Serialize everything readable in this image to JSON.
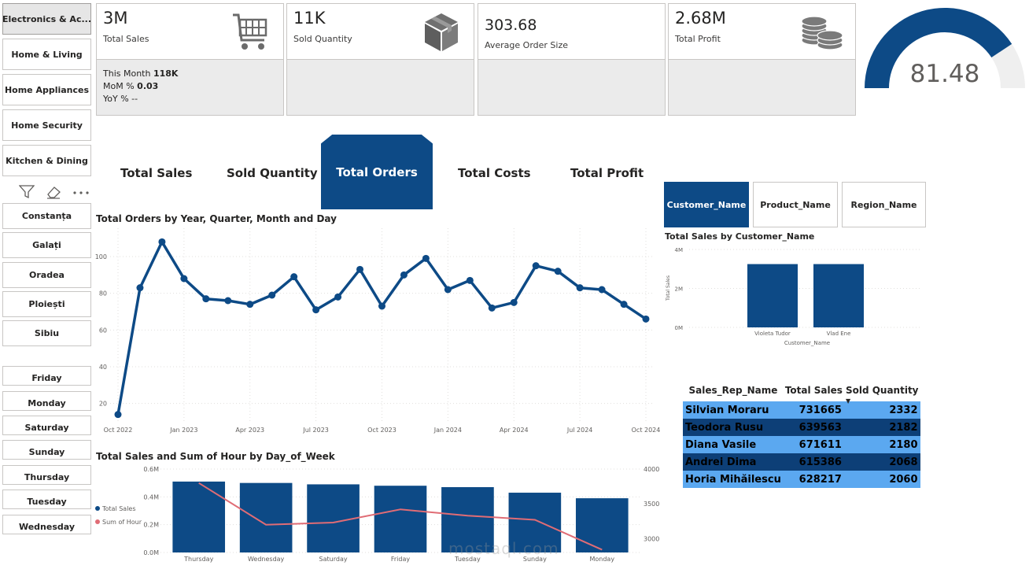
{
  "slicers": {
    "categories": [
      {
        "label": "Electronics & Ac...",
        "selected": true
      },
      {
        "label": "Home & Living",
        "selected": false
      },
      {
        "label": "Home Appliances",
        "selected": false
      },
      {
        "label": "Home Security",
        "selected": false
      },
      {
        "label": "Kitchen & Dining",
        "selected": false
      }
    ],
    "cities": [
      "Constanța",
      "Galați",
      "Oradea",
      "Ploiești",
      "Sibiu"
    ],
    "days": [
      "Friday",
      "Monday",
      "Saturday",
      "Sunday",
      "Thursday",
      "Tuesday",
      "Wednesday"
    ],
    "toolbar_icons": [
      "filter-icon",
      "eraser-icon",
      "more-options-icon"
    ]
  },
  "kpis": {
    "sales": {
      "value": "3M",
      "label": "Total Sales",
      "icon": "shopping-cart-icon",
      "this_month_label": "This Month",
      "this_month_value": "118K",
      "mom_label": "MoM %",
      "mom_value": "0.03",
      "yoy_label": "YoY %",
      "yoy_value": "--"
    },
    "quantity": {
      "value": "11K",
      "label": "Sold Quantity",
      "icon": "box-icon"
    },
    "order_size": {
      "value": "303.68",
      "label": "Average Order Size"
    },
    "profit": {
      "value": "2.68M",
      "label": "Total Profit",
      "icon": "coins-icon"
    }
  },
  "gauge": {
    "value": "81.48",
    "fraction": 0.8148,
    "color": "#0d4a86"
  },
  "tabs": {
    "items": [
      "Total Sales",
      "Sold Quantity",
      "Total Orders",
      "Total Costs",
      "Total Profit"
    ],
    "active": "Total Orders"
  },
  "orders_chart": {
    "title": "Total Orders by Year, Quarter, Month and Day",
    "chart_data": {
      "type": "line",
      "x": [
        "Oct 2022",
        "Nov 2022",
        "Dec 2022",
        "Jan 2023",
        "Feb 2023",
        "Mar 2023",
        "Apr 2023",
        "May 2023",
        "Jun 2023",
        "Jul 2023",
        "Aug 2023",
        "Sep 2023",
        "Oct 2023",
        "Nov 2023",
        "Dec 2023",
        "Jan 2024",
        "Feb 2024",
        "Mar 2024",
        "Apr 2024",
        "May 2024",
        "Jun 2024",
        "Jul 2024",
        "Aug 2024",
        "Sep 2024",
        "Oct 2024"
      ],
      "values": [
        14,
        83,
        108,
        88,
        77,
        76,
        74,
        79,
        89,
        71,
        78,
        93,
        73,
        90,
        99,
        82,
        87,
        72,
        75,
        95,
        92,
        83,
        82,
        74,
        66
      ],
      "x_ticks": [
        "Oct 2022",
        "Jan 2023",
        "Apr 2023",
        "Jul 2023",
        "Oct 2023",
        "Jan 2024",
        "Apr 2024",
        "Jul 2024",
        "Oct 2024"
      ],
      "y_ticks": [
        20,
        40,
        60,
        80,
        100
      ],
      "ylim": [
        10,
        112
      ],
      "color": "#0d4a86",
      "grid": true
    }
  },
  "hour_chart": {
    "title": "Total Sales and Sum of Hour by Day_of_Week",
    "chart_data": {
      "type": "bar",
      "categories": [
        "Thursday",
        "Wednesday",
        "Saturday",
        "Friday",
        "Tuesday",
        "Sunday",
        "Monday"
      ],
      "series": [
        {
          "name": "Total Sales",
          "values": [
            0.51,
            0.5,
            0.49,
            0.48,
            0.47,
            0.43,
            0.39
          ],
          "color": "#0d4a86",
          "axis": "left"
        },
        {
          "name": "Sum of Hour",
          "values": [
            3800,
            3200,
            3230,
            3420,
            3330,
            3270,
            2840
          ],
          "color": "#e06c75",
          "axis": "right",
          "type": "line"
        }
      ],
      "y_ticks_left": [
        "0.0M",
        "0.2M",
        "0.4M",
        "0.6M"
      ],
      "ylim_left": [
        0,
        0.6
      ],
      "y_ticks_right": [
        "3000",
        "3500",
        "4000"
      ],
      "ylim_right": [
        2800,
        4000
      ]
    }
  },
  "dimension_buttons": {
    "items": [
      "Customer_Name",
      "Product_Name",
      "Region_Name"
    ],
    "active": "Customer_Name"
  },
  "customer_chart": {
    "title": "Total Sales by Customer_Name",
    "chart_data": {
      "type": "bar",
      "categories": [
        "Violeta Tudor",
        "Vlad Ene"
      ],
      "values": [
        3.25,
        3.25
      ],
      "y_ticks": [
        "0M",
        "2M",
        "4M"
      ],
      "ylim": [
        0,
        4
      ],
      "xlabel": "Customer_Name",
      "ylabel": "Total Sales",
      "color": "#0d4a86"
    }
  },
  "sales_rep_table": {
    "headers": [
      "Sales_Rep_Name",
      "Total Sales",
      "Sold Quantity"
    ],
    "rows": [
      [
        "Silvian Moraru",
        "731665",
        "2332"
      ],
      [
        "Teodora Rusu",
        "639563",
        "2182"
      ],
      [
        "Diana Vasile",
        "671611",
        "2180"
      ],
      [
        "Andrei Dima",
        "615386",
        "2068"
      ],
      [
        "Horia Mihăilescu",
        "628217",
        "2060"
      ]
    ]
  },
  "watermark": {
    "text": "mostaql.com"
  }
}
